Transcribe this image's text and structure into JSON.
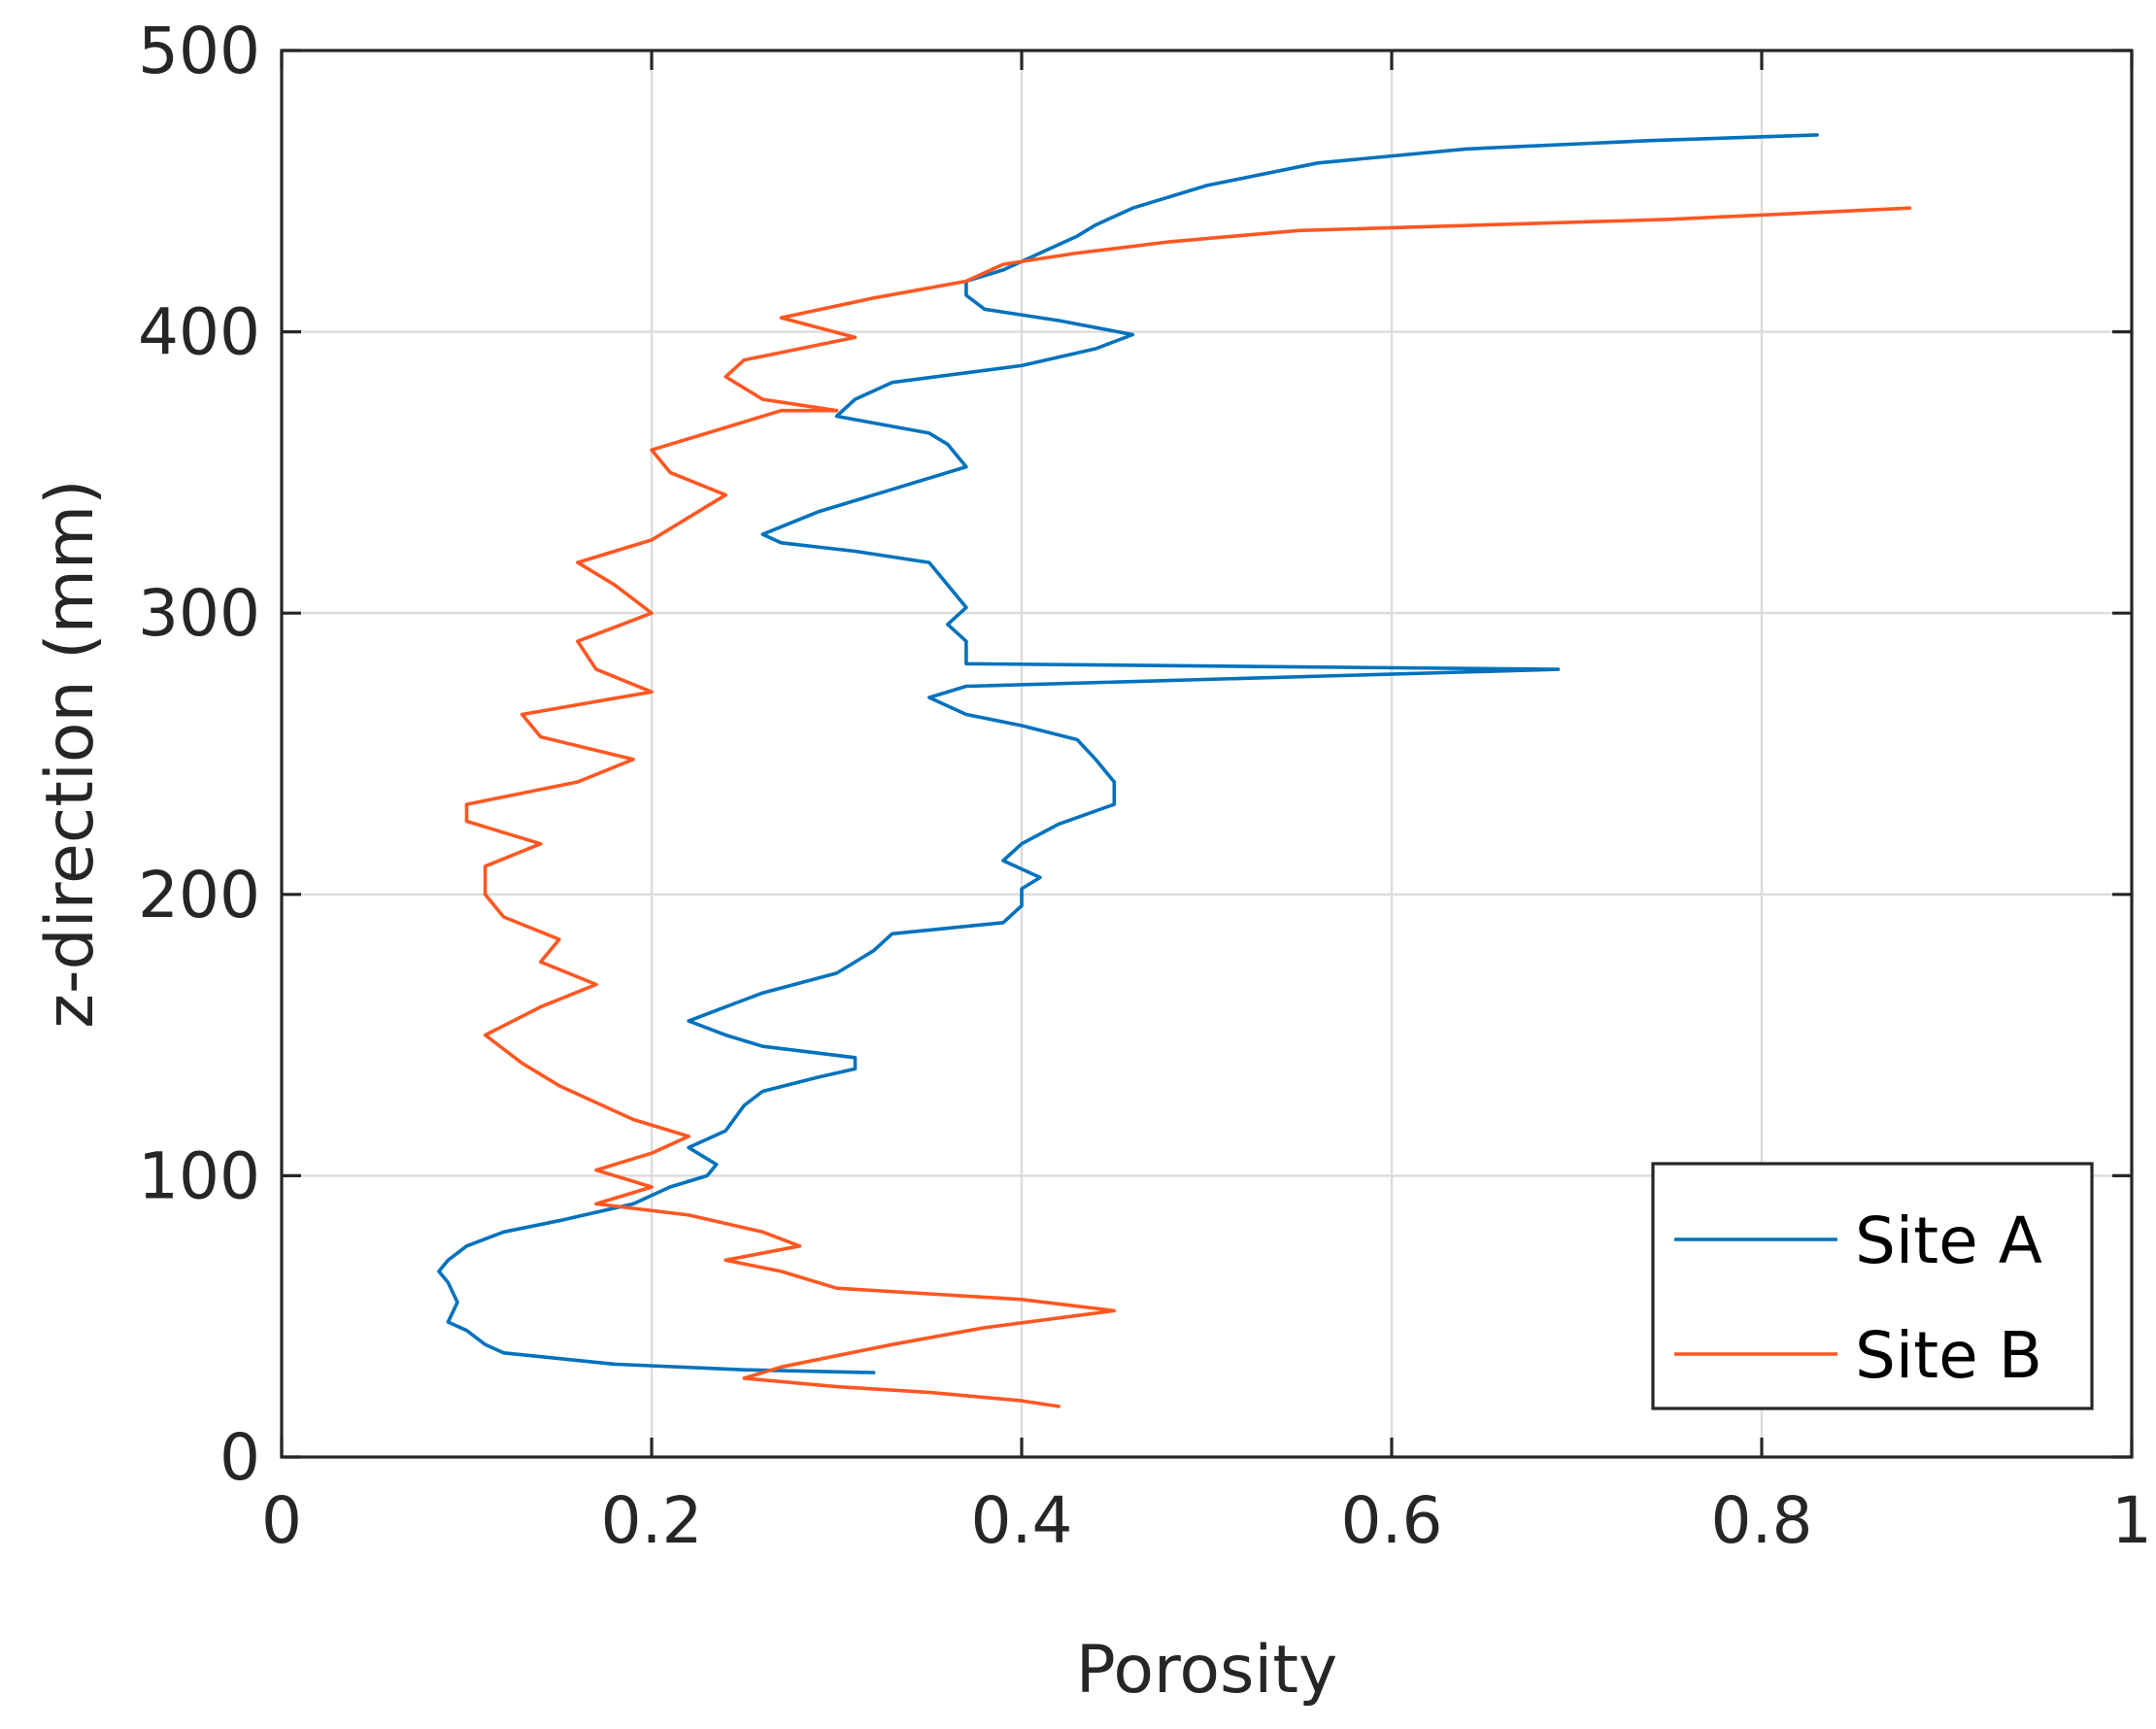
{
  "chart_data": {
    "type": "line",
    "title": "",
    "xlabel": "Porosity",
    "ylabel": "z-direction (mm)",
    "xlim": [
      0,
      1
    ],
    "ylim": [
      0,
      500
    ],
    "xticks": [
      0,
      0.2,
      0.4,
      0.6,
      0.8,
      1
    ],
    "yticks": [
      0,
      100,
      200,
      300,
      400,
      500
    ],
    "xtick_labels": [
      "0",
      "0.2",
      "0.4",
      "0.6",
      "0.8",
      "1"
    ],
    "ytick_labels": [
      "0",
      "100",
      "200",
      "300",
      "400",
      "500"
    ],
    "grid": true,
    "legend_position": "bottom-right",
    "series": [
      {
        "name": "Site A",
        "color": "#0072BD",
        "points": [
          [
            0.32,
            30
          ],
          [
            0.25,
            31
          ],
          [
            0.18,
            33
          ],
          [
            0.12,
            37
          ],
          [
            0.11,
            40
          ],
          [
            0.1,
            45
          ],
          [
            0.09,
            48
          ],
          [
            0.095,
            55
          ],
          [
            0.09,
            62
          ],
          [
            0.085,
            66
          ],
          [
            0.09,
            70
          ],
          [
            0.1,
            75
          ],
          [
            0.12,
            80
          ],
          [
            0.15,
            84
          ],
          [
            0.19,
            90
          ],
          [
            0.21,
            96
          ],
          [
            0.23,
            100
          ],
          [
            0.235,
            104
          ],
          [
            0.22,
            110
          ],
          [
            0.24,
            116
          ],
          [
            0.25,
            125
          ],
          [
            0.26,
            130
          ],
          [
            0.29,
            135
          ],
          [
            0.31,
            138
          ],
          [
            0.31,
            142
          ],
          [
            0.26,
            146
          ],
          [
            0.24,
            150
          ],
          [
            0.22,
            155
          ],
          [
            0.24,
            160
          ],
          [
            0.26,
            165
          ],
          [
            0.3,
            172
          ],
          [
            0.32,
            180
          ],
          [
            0.33,
            186
          ],
          [
            0.39,
            190
          ],
          [
            0.4,
            196
          ],
          [
            0.4,
            202
          ],
          [
            0.41,
            206
          ],
          [
            0.39,
            212
          ],
          [
            0.4,
            218
          ],
          [
            0.42,
            225
          ],
          [
            0.45,
            232
          ],
          [
            0.45,
            240
          ],
          [
            0.44,
            248
          ],
          [
            0.43,
            255
          ],
          [
            0.4,
            260
          ],
          [
            0.37,
            264
          ],
          [
            0.35,
            270
          ],
          [
            0.37,
            274
          ],
          [
            0.69,
            280
          ],
          [
            0.37,
            282
          ],
          [
            0.37,
            290
          ],
          [
            0.36,
            296
          ],
          [
            0.37,
            302
          ],
          [
            0.36,
            310
          ],
          [
            0.35,
            318
          ],
          [
            0.31,
            322
          ],
          [
            0.27,
            325
          ],
          [
            0.26,
            328
          ],
          [
            0.29,
            336
          ],
          [
            0.33,
            344
          ],
          [
            0.37,
            352
          ],
          [
            0.36,
            360
          ],
          [
            0.35,
            364
          ],
          [
            0.3,
            370
          ],
          [
            0.31,
            376
          ],
          [
            0.33,
            382
          ],
          [
            0.4,
            388
          ],
          [
            0.44,
            394
          ],
          [
            0.46,
            399
          ],
          [
            0.42,
            404
          ],
          [
            0.38,
            408
          ],
          [
            0.37,
            413
          ],
          [
            0.37,
            418
          ],
          [
            0.39,
            422
          ],
          [
            0.41,
            428
          ],
          [
            0.43,
            434
          ],
          [
            0.44,
            438
          ],
          [
            0.46,
            444
          ],
          [
            0.5,
            452
          ],
          [
            0.56,
            460
          ],
          [
            0.64,
            465
          ],
          [
            0.74,
            468
          ],
          [
            0.83,
            470
          ]
        ]
      },
      {
        "name": "Site B",
        "color": "#FF5722",
        "points": [
          [
            0.42,
            18
          ],
          [
            0.4,
            20
          ],
          [
            0.35,
            23
          ],
          [
            0.3,
            25
          ],
          [
            0.25,
            28
          ],
          [
            0.27,
            32
          ],
          [
            0.3,
            36
          ],
          [
            0.33,
            40
          ],
          [
            0.38,
            46
          ],
          [
            0.45,
            52
          ],
          [
            0.4,
            56
          ],
          [
            0.3,
            60
          ],
          [
            0.27,
            66
          ],
          [
            0.24,
            70
          ],
          [
            0.28,
            75
          ],
          [
            0.26,
            80
          ],
          [
            0.22,
            86
          ],
          [
            0.17,
            90
          ],
          [
            0.2,
            96
          ],
          [
            0.17,
            102
          ],
          [
            0.2,
            108
          ],
          [
            0.22,
            114
          ],
          [
            0.19,
            120
          ],
          [
            0.17,
            126
          ],
          [
            0.15,
            132
          ],
          [
            0.13,
            140
          ],
          [
            0.11,
            150
          ],
          [
            0.14,
            160
          ],
          [
            0.17,
            168
          ],
          [
            0.14,
            176
          ],
          [
            0.15,
            184
          ],
          [
            0.12,
            192
          ],
          [
            0.11,
            200
          ],
          [
            0.11,
            210
          ],
          [
            0.14,
            218
          ],
          [
            0.1,
            226
          ],
          [
            0.1,
            232
          ],
          [
            0.16,
            240
          ],
          [
            0.19,
            248
          ],
          [
            0.14,
            256
          ],
          [
            0.13,
            264
          ],
          [
            0.2,
            272
          ],
          [
            0.17,
            280
          ],
          [
            0.16,
            290
          ],
          [
            0.2,
            300
          ],
          [
            0.18,
            310
          ],
          [
            0.16,
            318
          ],
          [
            0.2,
            326
          ],
          [
            0.22,
            334
          ],
          [
            0.24,
            342
          ],
          [
            0.21,
            350
          ],
          [
            0.2,
            358
          ],
          [
            0.24,
            366
          ],
          [
            0.27,
            372
          ],
          [
            0.3,
            372
          ],
          [
            0.26,
            376
          ],
          [
            0.24,
            384
          ],
          [
            0.25,
            390
          ],
          [
            0.31,
            398
          ],
          [
            0.27,
            405
          ],
          [
            0.32,
            412
          ],
          [
            0.37,
            418
          ],
          [
            0.39,
            424
          ],
          [
            0.43,
            428
          ],
          [
            0.48,
            432
          ],
          [
            0.55,
            436
          ],
          [
            0.65,
            438
          ],
          [
            0.75,
            440
          ],
          [
            0.88,
            444
          ]
        ]
      }
    ]
  }
}
